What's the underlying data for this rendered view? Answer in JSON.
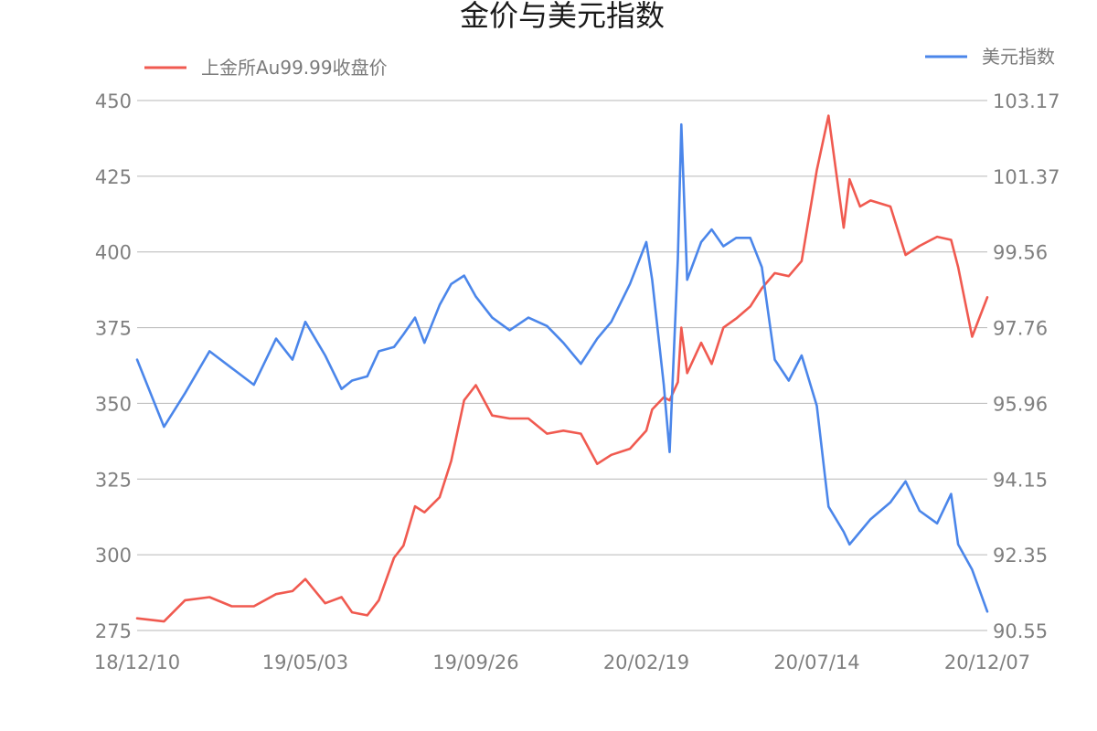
{
  "chart_data": {
    "type": "line",
    "title": "金价与美元指数",
    "x_ticks": [
      "18/12/10",
      "19/05/03",
      "19/09/26",
      "20/02/19",
      "20/07/14",
      "20/12/07"
    ],
    "x_range": [
      "18/12/10",
      "20/12/07"
    ],
    "y_left": {
      "ticks": [
        "275",
        "300",
        "325",
        "350",
        "375",
        "400",
        "425",
        "450"
      ],
      "range": [
        275,
        450
      ]
    },
    "y_right": {
      "ticks": [
        "90.55",
        "92.35",
        "94.15",
        "95.96",
        "97.76",
        "99.56",
        "101.37",
        "103.17"
      ],
      "range": [
        90.55,
        103.17
      ]
    },
    "grid": true,
    "legend": [
      "top-left",
      "top-right"
    ],
    "series": [
      {
        "name": "上金所Au99.99收盘价",
        "axis": "left",
        "color": "#f05a50",
        "x": [
          "18/12/10",
          "19/01/02",
          "19/01/20",
          "19/02/10",
          "19/03/01",
          "19/03/20",
          "19/04/08",
          "19/04/22",
          "19/05/03",
          "19/05/20",
          "19/06/03",
          "19/06/12",
          "19/06/25",
          "19/07/05",
          "19/07/18",
          "19/07/26",
          "19/08/05",
          "19/08/13",
          "19/08/26",
          "19/09/05",
          "19/09/16",
          "19/09/26",
          "19/10/10",
          "19/10/25",
          "19/11/10",
          "19/11/26",
          "19/12/10",
          "19/12/25",
          "20/01/08",
          "20/01/20",
          "20/02/05",
          "20/02/19",
          "20/02/24",
          "20/03/05",
          "20/03/10",
          "20/03/17",
          "20/03/20",
          "20/03/25",
          "20/04/06",
          "20/04/15",
          "20/04/25",
          "20/05/06",
          "20/05/18",
          "20/05/28",
          "20/06/08",
          "20/06/20",
          "20/07/01",
          "20/07/14",
          "20/07/24",
          "20/08/06",
          "20/08/11",
          "20/08/20",
          "20/08/29",
          "20/09/15",
          "20/09/28",
          "20/10/10",
          "20/10/25",
          "20/11/06",
          "20/11/12",
          "20/11/24",
          "20/12/07"
        ],
        "values": [
          279,
          278,
          285,
          286,
          283,
          283,
          287,
          288,
          292,
          284,
          286,
          281,
          280,
          285,
          299,
          303,
          316,
          314,
          319,
          331,
          351,
          356,
          346,
          345,
          345,
          340,
          341,
          340,
          330,
          333,
          335,
          341,
          348,
          352,
          351,
          357,
          375,
          360,
          370,
          363,
          375,
          378,
          382,
          388,
          393,
          392,
          397,
          427,
          445,
          408,
          424,
          415,
          417,
          415,
          399,
          402,
          405,
          404,
          395,
          372,
          385
        ]
      },
      {
        "name": "美元指数",
        "axis": "right",
        "color": "#4b86ea",
        "x": [
          "18/12/10",
          "19/01/02",
          "19/01/20",
          "19/02/10",
          "19/03/01",
          "19/03/20",
          "19/04/08",
          "19/04/22",
          "19/05/03",
          "19/05/20",
          "19/06/03",
          "19/06/12",
          "19/06/25",
          "19/07/05",
          "19/07/18",
          "19/07/26",
          "19/08/05",
          "19/08/13",
          "19/08/26",
          "19/09/05",
          "19/09/16",
          "19/09/26",
          "19/10/10",
          "19/10/25",
          "19/11/10",
          "19/11/26",
          "19/12/10",
          "19/12/25",
          "20/01/08",
          "20/01/20",
          "20/02/05",
          "20/02/19",
          "20/02/24",
          "20/03/05",
          "20/03/10",
          "20/03/17",
          "20/03/20",
          "20/03/25",
          "20/04/06",
          "20/04/15",
          "20/04/25",
          "20/05/06",
          "20/05/18",
          "20/05/28",
          "20/06/08",
          "20/06/20",
          "20/07/01",
          "20/07/14",
          "20/07/24",
          "20/08/06",
          "20/08/11",
          "20/08/20",
          "20/08/29",
          "20/09/15",
          "20/09/28",
          "20/10/10",
          "20/10/25",
          "20/11/06",
          "20/11/12",
          "20/11/24",
          "20/12/07"
        ],
        "values": [
          97.0,
          95.4,
          96.2,
          97.2,
          96.8,
          96.4,
          97.5,
          97.0,
          97.9,
          97.1,
          96.3,
          96.5,
          96.6,
          97.2,
          97.3,
          97.6,
          98.0,
          97.4,
          98.3,
          98.8,
          99.0,
          98.5,
          98.0,
          97.7,
          98.0,
          97.8,
          97.4,
          96.9,
          97.5,
          97.9,
          98.8,
          99.8,
          98.9,
          96.4,
          94.8,
          99.4,
          102.6,
          98.9,
          99.8,
          100.1,
          99.7,
          99.9,
          99.9,
          99.2,
          97.0,
          96.5,
          97.1,
          95.9,
          93.5,
          92.9,
          92.6,
          92.9,
          93.2,
          93.6,
          94.1,
          93.4,
          93.1,
          93.8,
          92.6,
          92.0,
          91.0
        ]
      }
    ]
  }
}
